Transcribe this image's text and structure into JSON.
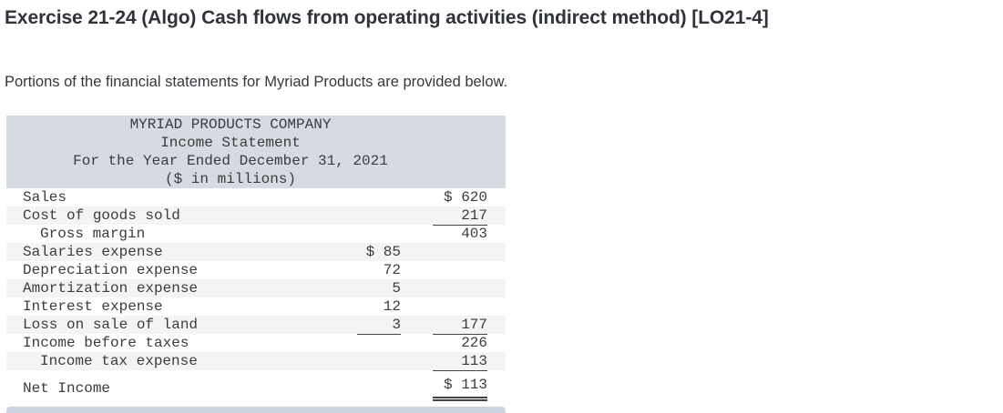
{
  "page": {
    "title": "Exercise 21-24 (Algo) Cash flows from operating activities (indirect method) [LO21-4]",
    "intro": "Portions of the financial statements for Myriad Products are provided below."
  },
  "statement": {
    "header_lines": [
      "MYRIAD PRODUCTS COMPANY",
      "Income Statement",
      "For the Year Ended December 31, 2021",
      "($ in millions)"
    ],
    "rows": [
      {
        "label": "Sales",
        "c2": "",
        "c3": "$ 620"
      },
      {
        "label": "Cost of goods sold",
        "c2": "",
        "c3": "217"
      },
      {
        "label": "Gross margin",
        "c2": "",
        "c3": "403"
      },
      {
        "label": "Salaries expense",
        "c2": "$ 85",
        "c3": ""
      },
      {
        "label": "Depreciation expense",
        "c2": "72",
        "c3": ""
      },
      {
        "label": "Amortization expense",
        "c2": "5",
        "c3": ""
      },
      {
        "label": "Interest expense",
        "c2": "12",
        "c3": ""
      },
      {
        "label": "Loss on sale of land",
        "c2": "3",
        "c3": "177"
      },
      {
        "label": "Income before taxes",
        "c2": "",
        "c3": "226"
      },
      {
        "label": "Income tax expense",
        "c2": "",
        "c3": "113"
      },
      {
        "label": "Net Income",
        "c2": "",
        "c3": "$ 113"
      }
    ]
  },
  "colors": {
    "header_bg": "#d6dae3",
    "stripe_bg": "#f4f4f4",
    "rule": "#454545",
    "peek_bg": "#ced4df"
  }
}
